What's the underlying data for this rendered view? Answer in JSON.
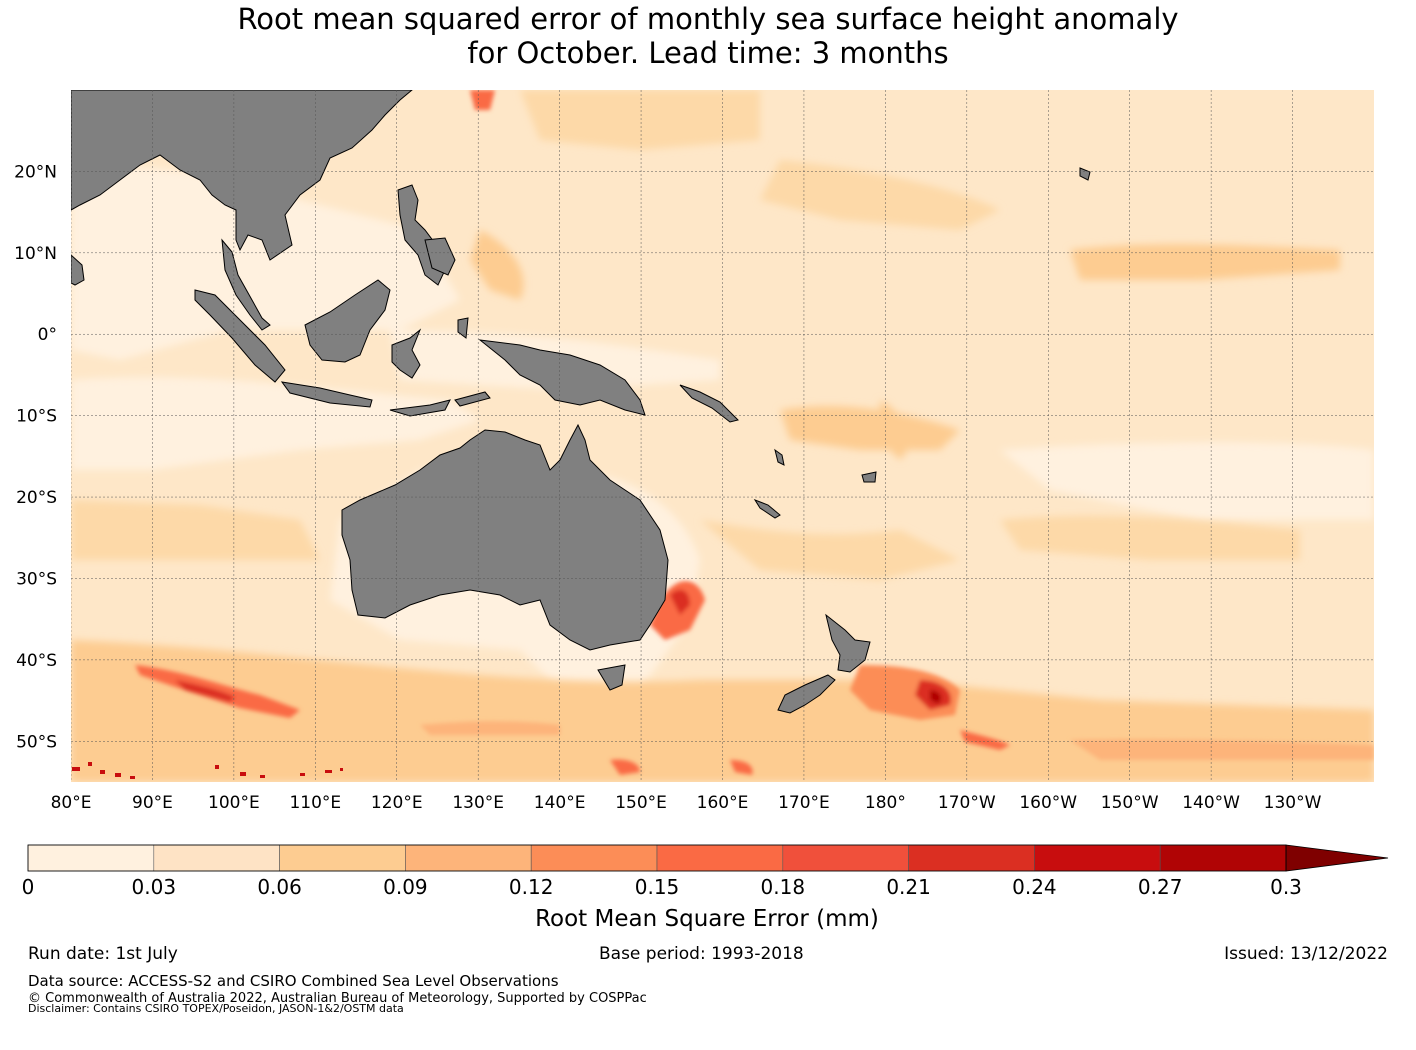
{
  "title": {
    "line1": "Root mean squared error of monthly sea surface height anomaly",
    "line2": "for October. Lead time: 3 months"
  },
  "map": {
    "lat_labels": [
      "20°N",
      "10°N",
      "0°",
      "10°S",
      "20°S",
      "30°S",
      "40°S",
      "50°S"
    ],
    "lon_labels": [
      "80°E",
      "90°E",
      "100°E",
      "110°E",
      "120°E",
      "130°E",
      "140°E",
      "150°E",
      "160°E",
      "170°E",
      "180°",
      "170°W",
      "160°W",
      "150°W",
      "140°W",
      "130°W"
    ],
    "extent": {
      "lon_min": 80,
      "lon_max": 240,
      "lat_min": -55,
      "lat_max": 30
    },
    "land_color": "#808080",
    "ocean_base_color": "#fee7c8",
    "grid": true
  },
  "colorbar": {
    "ticks": [
      "0",
      "0.03",
      "0.06",
      "0.09",
      "0.12",
      "0.15",
      "0.18",
      "0.21",
      "0.24",
      "0.27",
      "0.3"
    ],
    "colors": [
      "#fff1df",
      "#fee3c5",
      "#fdcc91",
      "#fdb47a",
      "#fc8d57",
      "#fa6a44",
      "#f0503b",
      "#db2f22",
      "#c80d0e",
      "#b00405"
    ],
    "extend_color": "#7f0000",
    "label": "Root Mean Square Error (mm)"
  },
  "footer": {
    "run_date": "Run date: 1st July",
    "base_period": "Base period: 1993-2018",
    "issued": "Issued: 13/12/2022",
    "data_source": "Data source: ACCESS-S2 and CSIRO Combined Sea Level Observations",
    "copyright": "© Commonwealth of Australia 2022, Australian Bureau of Meteorology, Supported by COSPPac",
    "disclaimer": "Disclaimer: Contains CSIRO TOPEX/Poseidon, JASON-1&2/OSTM data"
  }
}
